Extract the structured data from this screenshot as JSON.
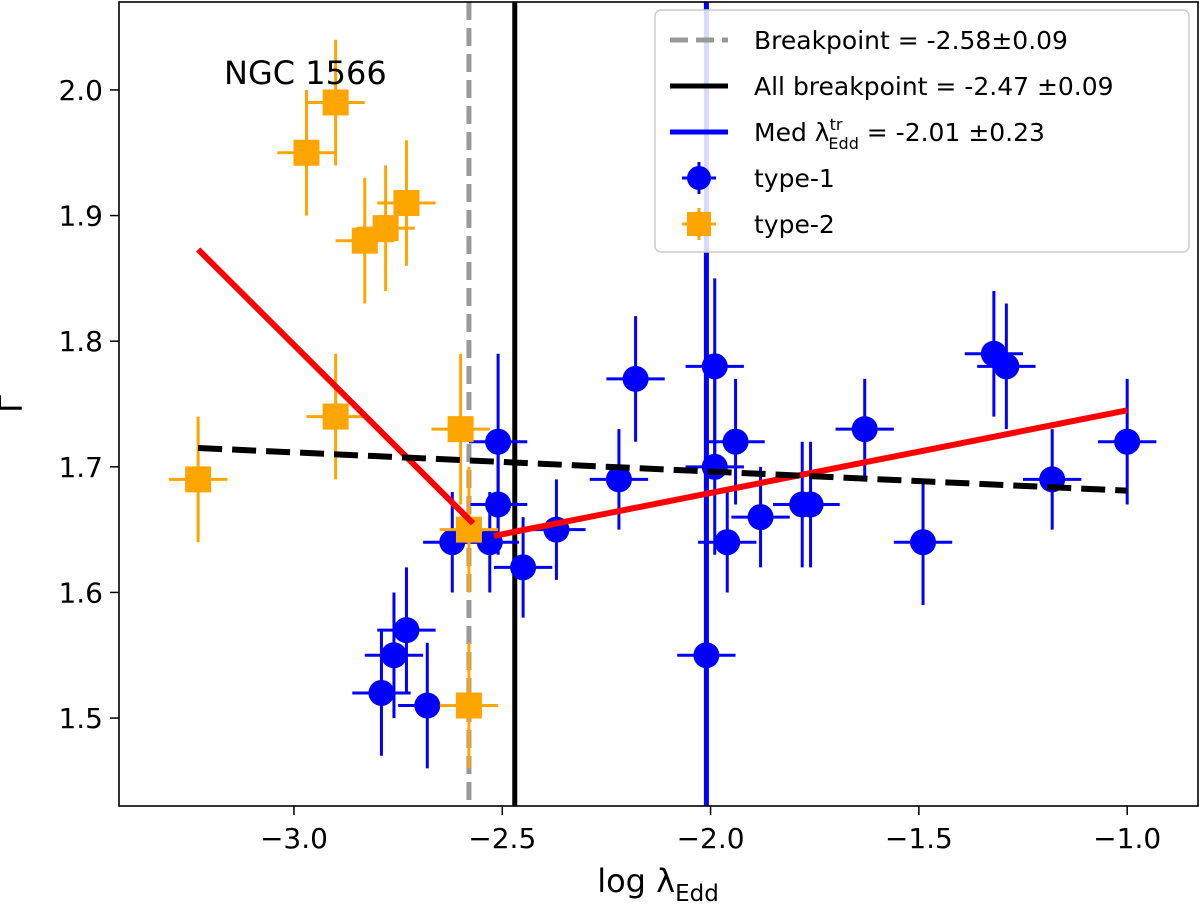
{
  "chart_data": {
    "type": "scatter",
    "title": "",
    "annotation": "NGC 1566",
    "xlabel": {
      "main": "log λ",
      "sub": "Edd"
    },
    "ylabel": "Γ",
    "xlim": [
      -3.42,
      -0.83
    ],
    "ylim": [
      1.43,
      2.07
    ],
    "xticks": [
      -3.0,
      -2.5,
      -2.0,
      -1.5,
      -1.0
    ],
    "xtick_labels": [
      "−3.0",
      "−2.5",
      "−2.0",
      "−1.5",
      "−1.0"
    ],
    "yticks": [
      1.5,
      1.6,
      1.7,
      1.8,
      1.9,
      2.0
    ],
    "ytick_labels": [
      "1.5",
      "1.6",
      "1.7",
      "1.8",
      "1.9",
      "2.0"
    ],
    "colors": {
      "type1": "#0000ff",
      "type2": "#ffa500",
      "fit": "#ff0000",
      "dashed_fit": "#000000",
      "breakpoint": "#999999",
      "all_breakpoint": "#000000",
      "med": "#0000ff"
    },
    "vertical_lines": [
      {
        "name": "breakpoint-line",
        "x": -2.58,
        "style": "dashed",
        "color": "#999999"
      },
      {
        "name": "all-breakpoint-line",
        "x": -2.47,
        "style": "solid",
        "color": "#000000"
      },
      {
        "name": "med-line",
        "x": -2.01,
        "style": "solid",
        "color": "#0000ff"
      }
    ],
    "fit_lines": [
      {
        "name": "broken-fit-left",
        "points": [
          [
            -3.23,
            1.873
          ],
          [
            -2.57,
            1.655
          ]
        ],
        "color": "#ff0000",
        "style": "solid"
      },
      {
        "name": "broken-fit-right",
        "points": [
          [
            -2.52,
            1.645
          ],
          [
            -1.0,
            1.745
          ]
        ],
        "color": "#ff0000",
        "style": "solid"
      },
      {
        "name": "linear-fit",
        "points": [
          [
            -3.23,
            1.715
          ],
          [
            -1.0,
            1.681
          ]
        ],
        "color": "#000000",
        "style": "dashed"
      }
    ],
    "series": [
      {
        "name": "type-1",
        "marker": "circle",
        "color": "#0000ff",
        "points": [
          {
            "x": -2.79,
            "y": 1.52,
            "xerr": 0.07,
            "yerr": 0.05
          },
          {
            "x": -2.76,
            "y": 1.55,
            "xerr": 0.07,
            "yerr": 0.05
          },
          {
            "x": -2.73,
            "y": 1.57,
            "xerr": 0.07,
            "yerr": 0.05
          },
          {
            "x": -2.68,
            "y": 1.51,
            "xerr": 0.07,
            "yerr": 0.05
          },
          {
            "x": -2.62,
            "y": 1.64,
            "xerr": 0.07,
            "yerr": 0.04
          },
          {
            "x": -2.53,
            "y": 1.64,
            "xerr": 0.07,
            "yerr": 0.04
          },
          {
            "x": -2.51,
            "y": 1.72,
            "xerr": 0.07,
            "yerr": 0.07
          },
          {
            "x": -2.51,
            "y": 1.67,
            "xerr": 0.07,
            "yerr": 0.04
          },
          {
            "x": -2.45,
            "y": 1.62,
            "xerr": 0.07,
            "yerr": 0.04
          },
          {
            "x": -2.37,
            "y": 1.65,
            "xerr": 0.07,
            "yerr": 0.04
          },
          {
            "x": -2.22,
            "y": 1.69,
            "xerr": 0.07,
            "yerr": 0.04
          },
          {
            "x": -2.18,
            "y": 1.77,
            "xerr": 0.07,
            "yerr": 0.05
          },
          {
            "x": -2.01,
            "y": 1.55,
            "xerr": 0.07,
            "yerr": 0.05
          },
          {
            "x": -1.99,
            "y": 1.78,
            "xerr": 0.07,
            "yerr": 0.07
          },
          {
            "x": -1.99,
            "y": 1.7,
            "xerr": 0.07,
            "yerr": 0.07
          },
          {
            "x": -1.96,
            "y": 1.64,
            "xerr": 0.07,
            "yerr": 0.04
          },
          {
            "x": -1.94,
            "y": 1.72,
            "xerr": 0.07,
            "yerr": 0.05
          },
          {
            "x": -1.88,
            "y": 1.66,
            "xerr": 0.07,
            "yerr": 0.04
          },
          {
            "x": -1.78,
            "y": 1.67,
            "xerr": 0.07,
            "yerr": 0.05
          },
          {
            "x": -1.76,
            "y": 1.67,
            "xerr": 0.07,
            "yerr": 0.05
          },
          {
            "x": -1.63,
            "y": 1.73,
            "xerr": 0.07,
            "yerr": 0.04
          },
          {
            "x": -1.49,
            "y": 1.64,
            "xerr": 0.07,
            "yerr": 0.05
          },
          {
            "x": -1.32,
            "y": 1.79,
            "xerr": 0.07,
            "yerr": 0.05
          },
          {
            "x": -1.29,
            "y": 1.78,
            "xerr": 0.07,
            "yerr": 0.05
          },
          {
            "x": -1.18,
            "y": 1.69,
            "xerr": 0.07,
            "yerr": 0.04
          },
          {
            "x": -1.0,
            "y": 1.72,
            "xerr": 0.07,
            "yerr": 0.05
          }
        ]
      },
      {
        "name": "type-2",
        "marker": "square",
        "color": "#ffa500",
        "points": [
          {
            "x": -3.23,
            "y": 1.69,
            "xerr": 0.07,
            "yerr": 0.05
          },
          {
            "x": -2.97,
            "y": 1.95,
            "xerr": 0.07,
            "yerr": 0.05
          },
          {
            "x": -2.9,
            "y": 1.99,
            "xerr": 0.07,
            "yerr": 0.05
          },
          {
            "x": -2.9,
            "y": 1.74,
            "xerr": 0.07,
            "yerr": 0.05
          },
          {
            "x": -2.83,
            "y": 1.88,
            "xerr": 0.07,
            "yerr": 0.05
          },
          {
            "x": -2.78,
            "y": 1.89,
            "xerr": 0.07,
            "yerr": 0.05
          },
          {
            "x": -2.73,
            "y": 1.91,
            "xerr": 0.07,
            "yerr": 0.05
          },
          {
            "x": -2.6,
            "y": 1.73,
            "xerr": 0.07,
            "yerr": 0.06
          },
          {
            "x": -2.58,
            "y": 1.65,
            "xerr": 0.07,
            "yerr": 0.05
          },
          {
            "x": -2.58,
            "y": 1.51,
            "xerr": 0.07,
            "yerr": 0.05
          }
        ]
      }
    ],
    "legend": {
      "position": "top-right",
      "entries": [
        {
          "name": "legend-breakpoint",
          "label": "Breakpoint = -2.58±0.09",
          "kind": "line",
          "style": "dashed",
          "color": "#999999"
        },
        {
          "name": "legend-all-breakpoint",
          "label": "All breakpoint = -2.47 ±0.09",
          "kind": "line",
          "style": "solid",
          "color": "#000000"
        },
        {
          "name": "legend-med",
          "label_prefix": "Med λ",
          "label_sup": "tr",
          "label_sub": "Edd",
          "label_suffix": " = -2.01 ±0.23",
          "kind": "line",
          "style": "solid",
          "color": "#0000ff"
        },
        {
          "name": "legend-type1",
          "label": "type-1",
          "kind": "circle",
          "color": "#0000ff"
        },
        {
          "name": "legend-type2",
          "label": "type-2",
          "kind": "square",
          "color": "#ffa500"
        }
      ]
    }
  }
}
